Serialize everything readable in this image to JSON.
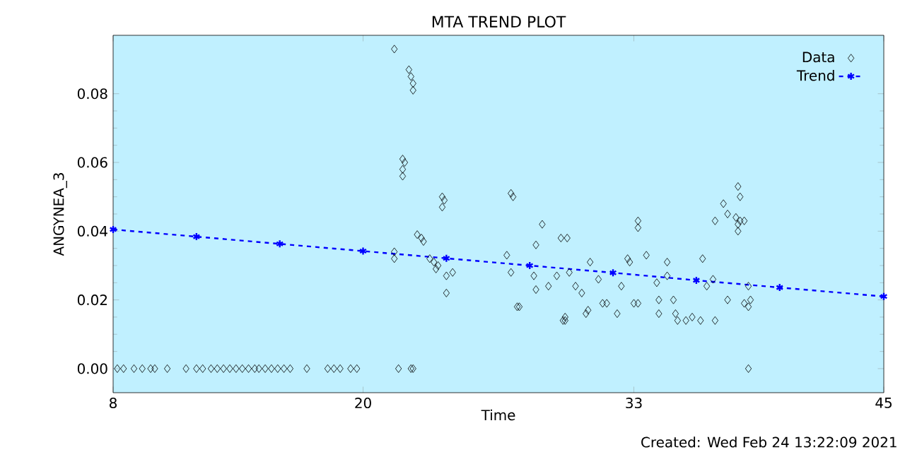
{
  "chart_data": {
    "type": "scatter",
    "title": "MTA TREND PLOT",
    "xlabel": "Time",
    "ylabel": "ANGYNEA_3",
    "annotations": [
      "Created: Wed Feb 24 13:22:09 2021"
    ],
    "xlim": [
      8,
      45
    ],
    "xticks": [
      8,
      20,
      33,
      45
    ],
    "ylim": [
      -0.007,
      0.097
    ],
    "yticks": [
      {
        "value": 0,
        "label": "0.00"
      },
      {
        "value": 0.02,
        "label": "0.02"
      },
      {
        "value": 0.04,
        "label": "0.04"
      },
      {
        "value": 0.06,
        "label": "0.06"
      },
      {
        "value": 0.08,
        "label": "0.08"
      }
    ],
    "legend": "top right",
    "grid": false,
    "series": [
      {
        "name": "Data",
        "color": "#000000",
        "marker": "diamond",
        "x": [
          8.2,
          8.5,
          9.0,
          9.4,
          9.8,
          10.0,
          10.6,
          11.5,
          12.0,
          12.3,
          12.7,
          13.0,
          13.3,
          13.6,
          13.9,
          14.2,
          14.5,
          14.8,
          15.0,
          15.3,
          15.6,
          15.9,
          16.2,
          16.5,
          17.3,
          18.3,
          18.6,
          18.9,
          19.4,
          19.7,
          21.7,
          22.3,
          22.4,
          21.5,
          22.2,
          22.3,
          22.4,
          22.4,
          21.9,
          22.0,
          21.9,
          21.9,
          23.8,
          23.9,
          23.8,
          22.6,
          22.8,
          22.9,
          21.5,
          21.5,
          23.2,
          23.4,
          23.6,
          23.5,
          24.0,
          24.3,
          24.0,
          27.1,
          27.2,
          26.9,
          27.1,
          27.4,
          27.5,
          28.6,
          28.3,
          29.5,
          29.8,
          28.2,
          28.3,
          28.9,
          29.3,
          29.6,
          29.7,
          29.7,
          29.9,
          30.2,
          30.5,
          30.9,
          31.3,
          30.8,
          30.7,
          31.5,
          31.7,
          32.2,
          32.4,
          32.7,
          32.8,
          33.0,
          33.2,
          33.2,
          33.2,
          33.6,
          34.1,
          34.2,
          34.6,
          34.6,
          34.9,
          34.2,
          35.0,
          35.1,
          35.5,
          35.8,
          36.2,
          36.3,
          36.9,
          36.5,
          36.8,
          37.5,
          36.9,
          37.3,
          37.5,
          37.9,
          38.0,
          38.1,
          38.0,
          38.1,
          38.3,
          38.0,
          38.5,
          38.3,
          38.6,
          38.5,
          38.5
        ],
        "values": [
          0,
          0,
          0,
          0,
          0,
          0,
          0,
          0,
          0,
          0,
          0,
          0,
          0,
          0,
          0,
          0,
          0,
          0,
          0,
          0,
          0,
          0,
          0,
          0,
          0,
          0,
          0,
          0,
          0,
          0,
          0,
          0,
          0,
          0.093,
          0.087,
          0.085,
          0.083,
          0.081,
          0.061,
          0.06,
          0.058,
          0.056,
          0.05,
          0.049,
          0.047,
          0.039,
          0.038,
          0.037,
          0.034,
          0.032,
          0.032,
          0.031,
          0.03,
          0.029,
          0.027,
          0.028,
          0.022,
          0.051,
          0.05,
          0.033,
          0.028,
          0.018,
          0.018,
          0.042,
          0.036,
          0.038,
          0.038,
          0.027,
          0.023,
          0.024,
          0.027,
          0.014,
          0.015,
          0.014,
          0.028,
          0.024,
          0.022,
          0.031,
          0.026,
          0.017,
          0.016,
          0.019,
          0.019,
          0.016,
          0.024,
          0.032,
          0.031,
          0.019,
          0.019,
          0.043,
          0.041,
          0.033,
          0.025,
          0.02,
          0.031,
          0.027,
          0.02,
          0.016,
          0.016,
          0.014,
          0.014,
          0.015,
          0.014,
          0.032,
          0.014,
          0.024,
          0.026,
          0.02,
          0.043,
          0.048,
          0.045,
          0.044,
          0.053,
          0.05,
          0.042,
          0.043,
          0.043,
          0.04,
          0.024,
          0.019,
          0.02,
          0.018,
          0.0
        ]
      },
      {
        "name": "Trend",
        "type": "line",
        "color": "#0000ff",
        "marker": "cross",
        "line_style": "dashed",
        "x": [
          8,
          12,
          16,
          20,
          24,
          28,
          32,
          36,
          40,
          45
        ],
        "values": [
          0.0405,
          0.0384,
          0.0363,
          0.0342,
          0.0321,
          0.03,
          0.0279,
          0.0257,
          0.0236,
          0.021
        ]
      }
    ]
  }
}
